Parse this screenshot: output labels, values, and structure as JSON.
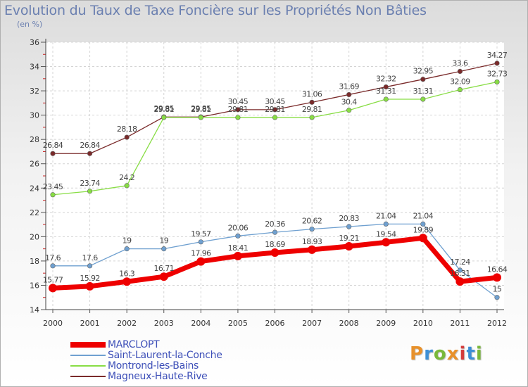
{
  "header": {
    "title": "Evolution du Taux de Taxe Foncière sur les Propriétés Non Bâties",
    "unit": "(en %)"
  },
  "logo": {
    "text": "Proxiti",
    "colors": [
      "#e8912b",
      "#3d8fd6",
      "#79b83a",
      "#e8912b",
      "#d43c3c",
      "#3d8fd6",
      "#79b83a"
    ]
  },
  "chart_data": {
    "type": "line",
    "x": [
      "2000",
      "2001",
      "2002",
      "2003",
      "2004",
      "2005",
      "2006",
      "2007",
      "2008",
      "2009",
      "2010",
      "2011",
      "2012"
    ],
    "ylim": [
      14,
      36
    ],
    "yticks": [
      14,
      16,
      18,
      20,
      22,
      24,
      26,
      28,
      30,
      32,
      34,
      36
    ],
    "grid": true,
    "legend": "bottom-left",
    "series": [
      {
        "name": "MARCLOPT",
        "color": "#ee0000",
        "width": 7,
        "values": [
          15.77,
          15.92,
          16.3,
          16.71,
          17.96,
          18.41,
          18.69,
          18.93,
          19.21,
          19.54,
          19.89,
          16.31,
          16.64
        ],
        "labels": [
          "15.77",
          "15.92",
          "16.3",
          "16.71",
          "17.96",
          "18.41",
          "18.69",
          "18.93",
          "19.21",
          "19.54",
          "19.89",
          "16.31",
          "16.64"
        ]
      },
      {
        "name": "Saint-Laurent-la-Conche",
        "color": "#6fa0d0",
        "width": 1.3,
        "values": [
          17.6,
          17.6,
          19,
          19,
          19.57,
          20.06,
          20.36,
          20.62,
          20.83,
          21.04,
          21.04,
          17.24,
          15
        ],
        "labels": [
          "17.6",
          "17.6",
          "19",
          "19",
          "19.57",
          "20.06",
          "20.36",
          "20.62",
          "20.83",
          "21.04",
          "21.04",
          "17.24",
          "15"
        ]
      },
      {
        "name": "Montrond-les-Bains",
        "color": "#88dd44",
        "width": 1.3,
        "values": [
          23.45,
          23.74,
          24.2,
          29.81,
          29.81,
          29.81,
          29.81,
          29.81,
          30.4,
          31.31,
          31.31,
          32.09,
          32.73
        ],
        "labels": [
          "23.45",
          "23.74",
          "24.2",
          "29.81",
          "29.81",
          "29.81",
          "29.81",
          "29.81",
          "30.4",
          "31.31",
          "31.31",
          "32.09",
          "32.73"
        ]
      },
      {
        "name": "Magneux-Haute-Rive",
        "color": "#7a2a2a",
        "width": 1.3,
        "values": [
          26.84,
          26.84,
          28.18,
          29.85,
          29.85,
          30.45,
          30.45,
          31.06,
          31.69,
          32.32,
          32.95,
          33.6,
          34.27
        ],
        "labels": [
          "26.84",
          "26.84",
          "28.18",
          "29.85",
          "29.85",
          "30.45",
          "30.45",
          "31.06",
          "31.69",
          "32.32",
          "32.95",
          "33.6",
          "34.27"
        ]
      }
    ]
  }
}
